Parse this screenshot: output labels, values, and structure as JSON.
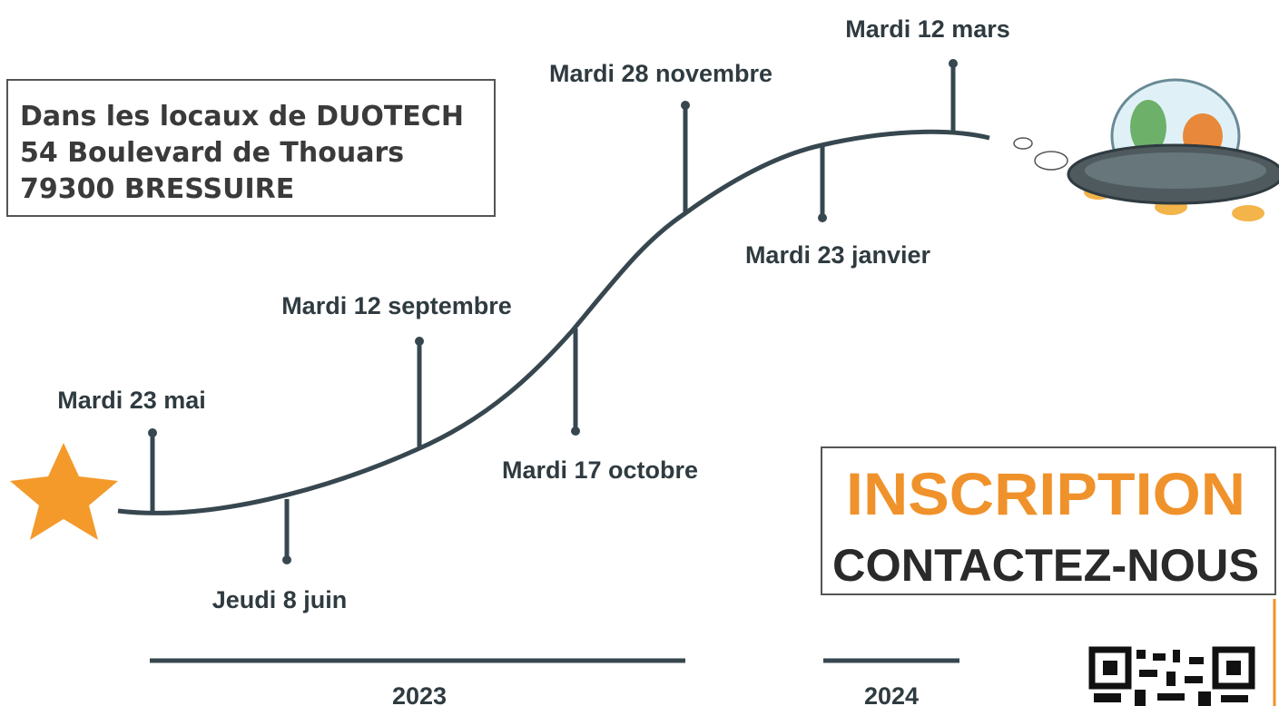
{
  "address": {
    "lines": [
      "Dans les locaux de DUOTECH",
      "54 Boulevard de Thouars",
      "79300 BRESSUIRE"
    ]
  },
  "events": [
    "Mardi 23 mai",
    "Jeudi 8 juin",
    "Mardi 12 septembre",
    "Mardi 17 octobre",
    "Mardi 28 novembre",
    "Mardi 23 janvier",
    "Mardi 12 mars"
  ],
  "years": [
    "2023",
    "2024"
  ],
  "inscription": {
    "title": "INSCRIPTION",
    "subtitle": "CONTACTEZ-NOUS"
  }
}
